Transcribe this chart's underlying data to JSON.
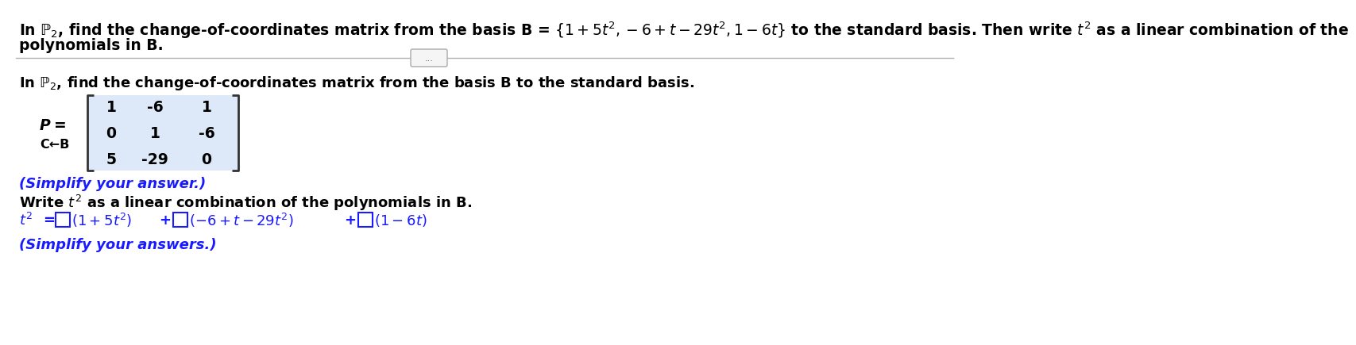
{
  "bg_color": "#ffffff",
  "text_color": "#000000",
  "blue_color": "#1a1aff",
  "divider_color": "#b0b0b0",
  "title_line1": "In $\\mathbb{P}_2$, find the change-of-coordinates matrix from the basis B = $\\{1 + 5t^2, -6 + t - 29t^2, 1 - 6t\\}$ to the standard basis. Then write $t^2$ as a linear combination of the",
  "title_line2": "polynomials in B.",
  "subtitle": "In $\\mathbb{P}_2$, find the change-of-coordinates matrix from the basis B to the standard basis.",
  "matrix": [
    [
      1,
      -6,
      1
    ],
    [
      0,
      1,
      -6
    ],
    [
      5,
      -29,
      0
    ]
  ],
  "simplify1": "(Simplify your answer.)",
  "write_t2_text": "Write $t^2$ as a linear combination of the polynomials in B.",
  "simplify2": "(Simplify your answers.)",
  "dots_label": "...",
  "matrix_bg": "#dde8f8",
  "matrix_border": "#7799cc"
}
